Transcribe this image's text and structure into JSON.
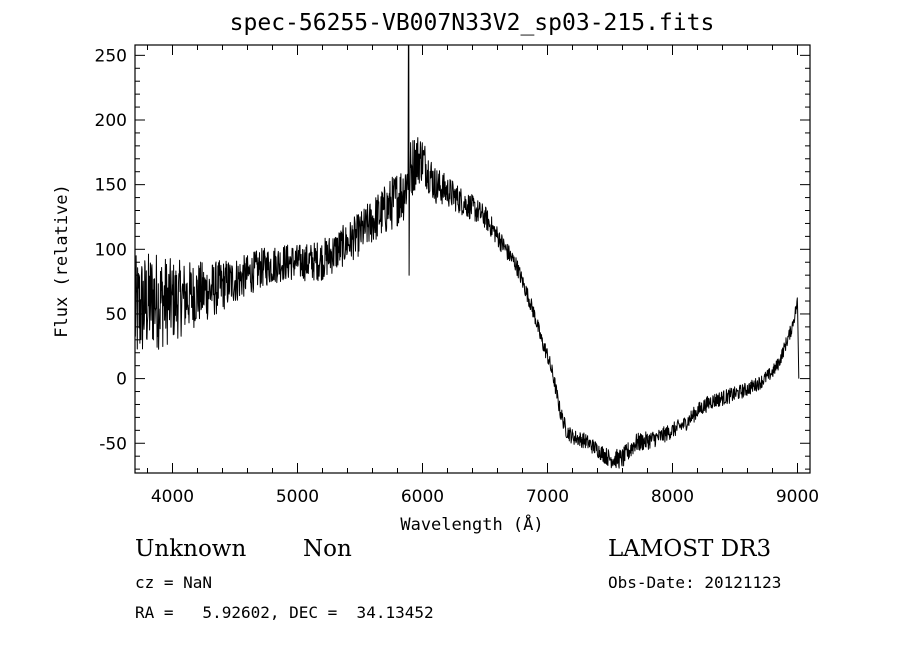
{
  "colors": {
    "background": "#ffffff",
    "ink": "#000000"
  },
  "footer": {
    "class_text": "Unknown",
    "subclass_text": "Non",
    "cz_text": "cz = NaN",
    "radec_text": "RA =   5.92602, DEC =  34.13452",
    "survey_text": "LAMOST DR3",
    "obsdate_text": "Obs-Date: 20121123"
  },
  "chart_data": {
    "type": "line",
    "title": "spec-56255-VB007N33V2_sp03-215.fits",
    "xlabel": "Wavelength (Å)",
    "ylabel": "Flux (relative)",
    "xlim": [
      3700,
      9100
    ],
    "ylim": [
      -73,
      258
    ],
    "xticks": [
      4000,
      5000,
      6000,
      7000,
      8000,
      9000
    ],
    "yticks": [
      -50,
      0,
      50,
      100,
      150,
      200,
      250
    ],
    "series": [
      {
        "name": "spectrum",
        "anchors": [
          [
            3700,
            50
          ],
          [
            3750,
            55
          ],
          [
            3800,
            58
          ],
          [
            3850,
            62
          ],
          [
            3900,
            60
          ],
          [
            4000,
            60
          ],
          [
            4100,
            63
          ],
          [
            4200,
            66
          ],
          [
            4300,
            68
          ],
          [
            4400,
            72
          ],
          [
            4500,
            76
          ],
          [
            4600,
            80
          ],
          [
            4700,
            85
          ],
          [
            4800,
            88
          ],
          [
            4900,
            90
          ],
          [
            5000,
            90
          ],
          [
            5100,
            90
          ],
          [
            5200,
            92
          ],
          [
            5300,
            98
          ],
          [
            5400,
            105
          ],
          [
            5500,
            112
          ],
          [
            5600,
            122
          ],
          [
            5700,
            130
          ],
          [
            5800,
            140
          ],
          [
            5850,
            145
          ],
          [
            5900,
            160
          ],
          [
            5950,
            170
          ],
          [
            6000,
            170
          ],
          [
            6050,
            160
          ],
          [
            6100,
            150
          ],
          [
            6200,
            145
          ],
          [
            6300,
            138
          ],
          [
            6400,
            132
          ],
          [
            6500,
            125
          ],
          [
            6600,
            110
          ],
          [
            6700,
            95
          ],
          [
            6750,
            88
          ],
          [
            6800,
            75
          ],
          [
            6850,
            62
          ],
          [
            6900,
            48
          ],
          [
            6950,
            30
          ],
          [
            7000,
            18
          ],
          [
            7050,
            0
          ],
          [
            7100,
            -25
          ],
          [
            7150,
            -40
          ],
          [
            7200,
            -45
          ],
          [
            7300,
            -48
          ],
          [
            7400,
            -55
          ],
          [
            7500,
            -62
          ],
          [
            7600,
            -62
          ],
          [
            7700,
            -50
          ],
          [
            7800,
            -48
          ],
          [
            7900,
            -45
          ],
          [
            8000,
            -40
          ],
          [
            8100,
            -35
          ],
          [
            8200,
            -25
          ],
          [
            8300,
            -18
          ],
          [
            8400,
            -15
          ],
          [
            8500,
            -12
          ],
          [
            8600,
            -8
          ],
          [
            8700,
            -3
          ],
          [
            8800,
            5
          ],
          [
            8850,
            12
          ],
          [
            8900,
            25
          ],
          [
            8950,
            38
          ],
          [
            8980,
            50
          ],
          [
            9000,
            60
          ],
          [
            9010,
            0
          ]
        ],
        "noise_profile": [
          [
            3700,
            45
          ],
          [
            3800,
            40
          ],
          [
            3900,
            38
          ],
          [
            4000,
            32
          ],
          [
            4200,
            25
          ],
          [
            4400,
            20
          ],
          [
            4600,
            16
          ],
          [
            4800,
            15
          ],
          [
            5000,
            14
          ],
          [
            5200,
            16
          ],
          [
            5400,
            16
          ],
          [
            5600,
            18
          ],
          [
            5800,
            22
          ],
          [
            5900,
            25
          ],
          [
            6000,
            18
          ],
          [
            6200,
            12
          ],
          [
            6400,
            10
          ],
          [
            6600,
            8
          ],
          [
            6800,
            6
          ],
          [
            7000,
            6
          ],
          [
            7200,
            6
          ],
          [
            7400,
            6
          ],
          [
            7600,
            8
          ],
          [
            7800,
            7
          ],
          [
            8000,
            6
          ],
          [
            8400,
            6
          ],
          [
            8800,
            5
          ],
          [
            9000,
            5
          ],
          [
            9010,
            0
          ]
        ],
        "features": [
          {
            "x": 5889,
            "y": 258
          },
          {
            "x": 5893,
            "y": 80
          },
          {
            "x": 5898,
            "y": 145
          }
        ]
      }
    ]
  }
}
